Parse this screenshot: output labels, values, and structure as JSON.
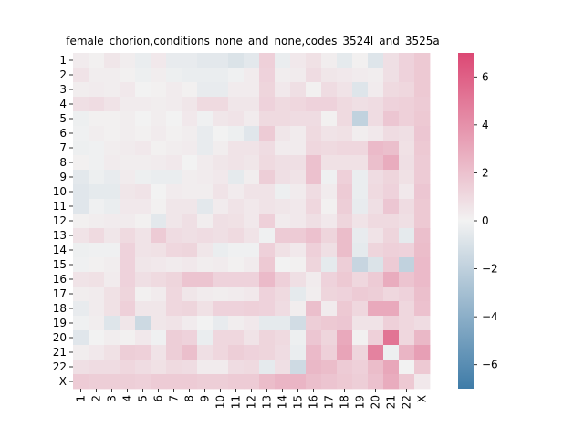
{
  "chart_data": {
    "type": "heatmap",
    "title": "female_chorion,conditions_none_and_none,codes_3524l_and_3525a",
    "xlabel": "",
    "ylabel": "",
    "x_labels": [
      "1",
      "2",
      "3",
      "4",
      "5",
      "6",
      "7",
      "8",
      "9",
      "10",
      "11",
      "12",
      "13",
      "14",
      "15",
      "16",
      "17",
      "18",
      "19",
      "20",
      "21",
      "22",
      "X"
    ],
    "y_labels": [
      "1",
      "2",
      "3",
      "4",
      "5",
      "6",
      "7",
      "8",
      "9",
      "10",
      "11",
      "12",
      "13",
      "14",
      "15",
      "16",
      "17",
      "18",
      "19",
      "20",
      "21",
      "22",
      "X"
    ],
    "colorbar": {
      "range": [
        -7,
        7
      ],
      "ticks": [
        -6,
        -4,
        -2,
        0,
        2,
        4,
        6
      ],
      "tick_labels": [
        "−6",
        "−4",
        "−2",
        "0",
        "2",
        "4",
        "6"
      ],
      "low_color": "#3f7ca8",
      "mid_color": "#f2f2f2",
      "high_color": "#dc4874"
    },
    "grid": false,
    "values": [
      [
        0.3,
        0.1,
        0.5,
        0.2,
        -0.3,
        0.4,
        -0.4,
        -0.4,
        -0.6,
        -0.6,
        -0.9,
        -0.6,
        1.4,
        -0.3,
        0.4,
        0.7,
        0.2,
        -0.5,
        0.1,
        -0.8,
        0.8,
        1.3,
        1.7
      ],
      [
        0.6,
        0.2,
        0.2,
        0.1,
        -0.2,
        0.2,
        -0.2,
        -0.3,
        -0.3,
        -0.3,
        -0.1,
        0.3,
        1.3,
        0.2,
        0.3,
        0.9,
        0.5,
        0.4,
        0.3,
        0.2,
        0.8,
        1.3,
        1.7
      ],
      [
        0.2,
        0.3,
        0.2,
        0.4,
        0.0,
        0.1,
        0.3,
        0.1,
        -0.4,
        -0.4,
        0.3,
        0.3,
        1.2,
        0.4,
        0.8,
        0.1,
        0.9,
        0.6,
        -0.8,
        0.3,
        1.0,
        1.1,
        1.7
      ],
      [
        0.8,
        0.9,
        0.6,
        0.3,
        0.3,
        0.2,
        0.3,
        0.5,
        1.0,
        1.0,
        0.5,
        0.5,
        1.3,
        1.0,
        1.1,
        1.3,
        1.3,
        1.0,
        0.8,
        0.9,
        1.3,
        1.4,
        1.6
      ],
      [
        -0.2,
        0.1,
        0.1,
        0.2,
        0.0,
        0.2,
        0.0,
        0.4,
        -0.1,
        0.5,
        0.6,
        0.3,
        1.0,
        1.0,
        0.9,
        0.9,
        0.1,
        1.0,
        -1.9,
        0.9,
        1.8,
        1.4,
        1.7
      ],
      [
        -0.1,
        0.2,
        0.1,
        0.2,
        0.1,
        0.3,
        0.1,
        0.2,
        -0.4,
        0.0,
        -0.2,
        -0.7,
        1.6,
        0.5,
        0.3,
        1.0,
        0.6,
        0.7,
        0.2,
        0.4,
        0.9,
        0.8,
        1.8
      ],
      [
        -0.2,
        -0.1,
        0.2,
        0.3,
        0.4,
        0.1,
        0.2,
        0.3,
        -0.4,
        0.2,
        0.6,
        0.6,
        0.9,
        0.3,
        0.3,
        1.1,
        1.0,
        1.1,
        1.1,
        2.3,
        2.1,
        0.7,
        1.7
      ],
      [
        0.1,
        -0.1,
        0.3,
        0.2,
        0.2,
        0.3,
        0.4,
        0.0,
        0.3,
        0.5,
        0.6,
        0.5,
        1.0,
        0.8,
        0.8,
        2.0,
        0.7,
        0.7,
        0.7,
        2.1,
        2.9,
        0.8,
        1.6
      ],
      [
        -0.6,
        -0.2,
        -0.4,
        0.3,
        -0.2,
        -0.3,
        -0.3,
        0.2,
        0.3,
        0.4,
        -0.5,
        0.2,
        1.5,
        0.8,
        0.6,
        2.0,
        -0.1,
        1.4,
        -0.3,
        0.9,
        1.2,
        0.7,
        1.6
      ],
      [
        -0.7,
        -0.5,
        -0.5,
        0.5,
        0.6,
        0.0,
        0.3,
        0.2,
        0.2,
        0.6,
        0.3,
        0.6,
        0.6,
        -0.2,
        0.3,
        0.9,
        0.3,
        1.6,
        -0.3,
        1.0,
        1.3,
        0.4,
        1.8
      ],
      [
        -0.7,
        -0.1,
        -0.3,
        0.4,
        0.4,
        0.1,
        0.5,
        0.5,
        -0.6,
        0.3,
        0.6,
        0.4,
        0.6,
        0.5,
        0.4,
        1.1,
        0.1,
        1.5,
        -0.4,
        0.8,
        1.8,
        0.9,
        1.7
      ],
      [
        0.1,
        0.2,
        0.3,
        0.3,
        0.1,
        -0.6,
        0.5,
        0.8,
        0.2,
        0.8,
        0.7,
        0.4,
        1.4,
        0.3,
        0.4,
        0.8,
        0.4,
        1.2,
        0.6,
        1.0,
        1.0,
        0.8,
        1.7
      ],
      [
        0.6,
        1.0,
        0.5,
        1.0,
        0.6,
        1.6,
        0.9,
        0.8,
        0.9,
        0.8,
        1.0,
        0.6,
        -0.1,
        1.6,
        1.6,
        2.0,
        1.2,
        2.2,
        -0.4,
        0.6,
        1.2,
        -0.5,
        2.1
      ],
      [
        -0.2,
        -0.1,
        -0.1,
        1.3,
        0.6,
        0.7,
        1.1,
        1.2,
        0.5,
        -0.3,
        -0.1,
        -0.1,
        1.4,
        0.7,
        0.4,
        1.4,
        0.8,
        2.2,
        -0.5,
        1.2,
        1.4,
        1.3,
        2.2
      ],
      [
        -0.1,
        0.1,
        0.2,
        1.3,
        0.5,
        0.4,
        0.3,
        0.4,
        0.2,
        0.3,
        0.1,
        0.3,
        1.7,
        0.0,
        0.1,
        1.2,
        -0.5,
        1.5,
        -1.7,
        -0.9,
        1.6,
        -1.9,
        2.3
      ],
      [
        0.6,
        0.7,
        0.3,
        1.3,
        0.8,
        1.0,
        1.2,
        1.9,
        1.9,
        1.3,
        1.3,
        1.3,
        2.3,
        1.4,
        0.8,
        0.3,
        1.3,
        1.7,
        1.1,
        1.6,
        2.9,
        1.9,
        2.3
      ],
      [
        0.2,
        0.3,
        0.7,
        1.2,
        0.1,
        0.3,
        1.1,
        0.5,
        0.3,
        0.2,
        0.3,
        0.4,
        1.3,
        1.0,
        -0.5,
        0.2,
        1.2,
        1.3,
        1.6,
        1.5,
        1.1,
        1.3,
        2.1
      ],
      [
        -0.4,
        0.3,
        0.7,
        1.4,
        0.5,
        0.5,
        1.1,
        1.2,
        0.7,
        1.3,
        1.3,
        1.4,
        1.3,
        0.9,
        0.2,
        2.1,
        0.3,
        1.7,
        1.1,
        3.0,
        3.0,
        1.1,
        2.0
      ],
      [
        -0.1,
        0.2,
        -0.8,
        0.5,
        -1.5,
        0.5,
        0.6,
        0.3,
        0.0,
        -0.4,
        0.2,
        0.4,
        -0.5,
        -0.5,
        -1.3,
        1.5,
        1.7,
        1.8,
        0.6,
        0.6,
        1.4,
        1.1,
        0.9
      ],
      [
        -0.7,
        0.0,
        0.2,
        0.1,
        0.4,
        -0.1,
        1.5,
        1.3,
        -0.3,
        1.1,
        1.1,
        0.6,
        1.2,
        1.0,
        -0.2,
        1.8,
        1.2,
        3.0,
        0.1,
        1.4,
        5.2,
        1.1,
        2.4
      ],
      [
        0.2,
        0.4,
        0.7,
        1.5,
        1.4,
        0.6,
        1.5,
        2.1,
        0.8,
        1.1,
        1.5,
        1.3,
        1.2,
        0.9,
        -0.3,
        2.3,
        1.4,
        3.2,
        1.2,
        4.6,
        -0.2,
        2.5,
        3.4
      ],
      [
        0.8,
        0.9,
        0.9,
        1.1,
        0.9,
        0.7,
        1.0,
        0.9,
        0.3,
        0.3,
        0.9,
        1.0,
        -0.5,
        0.8,
        -1.4,
        2.4,
        2.2,
        1.6,
        1.4,
        2.2,
        3.1,
        0.0,
        1.7
      ],
      [
        1.6,
        1.5,
        1.5,
        1.5,
        1.4,
        1.6,
        1.6,
        1.6,
        1.5,
        1.5,
        1.6,
        1.6,
        2.2,
        2.5,
        2.5,
        2.1,
        1.9,
        1.7,
        1.5,
        2.0,
        2.9,
        1.7,
        0.4
      ]
    ]
  }
}
